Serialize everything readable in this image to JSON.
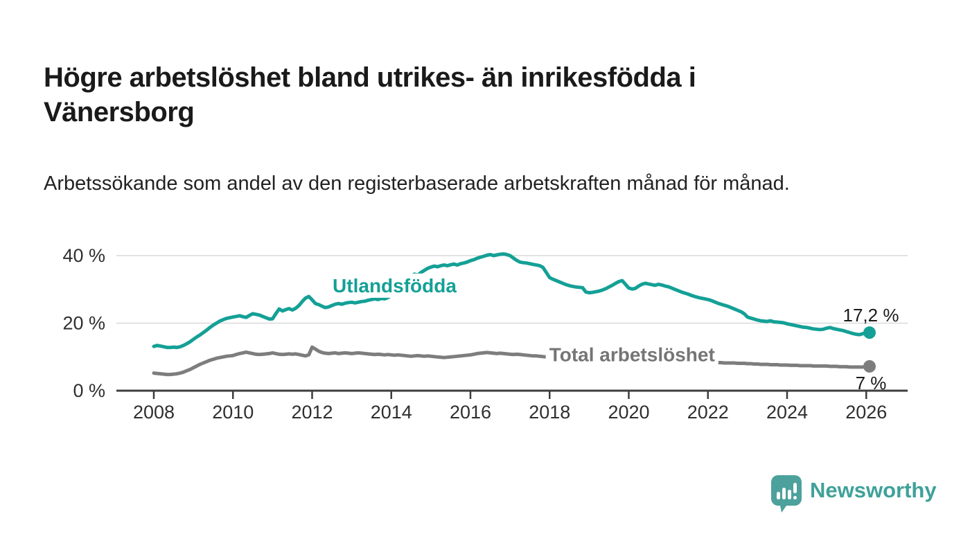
{
  "header": {
    "title": "Högre arbetslöshet bland utrikes- än inrikesfödda i Vänersborg",
    "subtitle": "Arbetssökande som andel av den registerbaserade arbetskraften månad för månad."
  },
  "footer": {
    "brand": "Newsworthy",
    "brand_color": "#3fa19a",
    "logo_icon": "speech-bubble-bar-chart"
  },
  "chart_data": {
    "type": "line",
    "title": "",
    "xlabel": "",
    "ylabel": "",
    "unit": "%",
    "x_axis": {
      "start": "2008-01",
      "end": "2026-02",
      "interval": "monthly",
      "tick_labels": [
        "2008",
        "2010",
        "2012",
        "2014",
        "2016",
        "2018",
        "2020",
        "2022",
        "2024",
        "2026"
      ]
    },
    "y_axis": {
      "ylim": [
        0,
        46
      ],
      "ticks": [
        {
          "value": 0,
          "label": "0 %"
        },
        {
          "value": 20,
          "label": "20 %"
        },
        {
          "value": 40,
          "label": "40 %"
        }
      ],
      "grid": true,
      "grid_color": "#d9d9d9",
      "axis_color": "#3d3d3d",
      "tick_label_color": "#2f2f2f"
    },
    "legend_position": "inline-labels",
    "series": [
      {
        "name": "Utlandsfödda",
        "color": "#14a096",
        "end_label": "17,2 %",
        "end_value": 17.2,
        "label": {
          "text": "Utlandsfödda",
          "month_index": 73,
          "value": 31
        },
        "values": [
          13.1,
          13.4,
          13.2,
          13.0,
          12.8,
          12.8,
          12.9,
          12.8,
          13.0,
          13.4,
          13.9,
          14.5,
          15.2,
          15.9,
          16.5,
          17.2,
          17.9,
          18.7,
          19.4,
          20.0,
          20.6,
          21.0,
          21.4,
          21.6,
          21.8,
          22.0,
          22.2,
          21.9,
          21.7,
          22.3,
          22.8,
          22.6,
          22.4,
          22.0,
          21.6,
          21.2,
          21.3,
          22.8,
          24.2,
          23.6,
          24.0,
          24.3,
          23.9,
          24.4,
          25.2,
          26.4,
          27.4,
          27.9,
          26.9,
          25.8,
          25.5,
          25.0,
          24.6,
          24.8,
          25.2,
          25.6,
          25.8,
          25.6,
          25.9,
          26.1,
          26.2,
          26.0,
          26.2,
          26.4,
          26.5,
          26.8,
          27.0,
          27.2,
          27.0,
          27.3,
          27.2,
          27.6,
          28.2,
          29.0,
          30.0,
          31.0,
          32.0,
          33.0,
          33.8,
          34.5,
          34.2,
          35.0,
          35.6,
          36.2,
          36.6,
          36.9,
          36.7,
          37.0,
          37.2,
          37.0,
          37.3,
          37.5,
          37.2,
          37.6,
          37.8,
          38.1,
          38.5,
          38.8,
          39.2,
          39.5,
          39.8,
          40.1,
          40.3,
          40.0,
          40.2,
          40.4,
          40.5,
          40.3,
          40.0,
          39.3,
          38.6,
          38.1,
          37.9,
          37.8,
          37.6,
          37.4,
          37.2,
          37.0,
          36.5,
          35.0,
          33.5,
          33.0,
          32.6,
          32.2,
          31.8,
          31.4,
          31.1,
          30.9,
          30.7,
          30.6,
          30.5,
          29.2,
          29.0,
          29.1,
          29.3,
          29.5,
          29.8,
          30.2,
          30.7,
          31.2,
          31.8,
          32.3,
          32.6,
          31.5,
          30.4,
          30.1,
          30.3,
          31.0,
          31.5,
          31.8,
          31.6,
          31.4,
          31.2,
          31.5,
          31.3,
          31.0,
          30.8,
          30.4,
          30.0,
          29.6,
          29.2,
          28.9,
          28.6,
          28.2,
          27.9,
          27.6,
          27.4,
          27.2,
          27.0,
          26.7,
          26.3,
          25.9,
          25.6,
          25.3,
          25.0,
          24.6,
          24.2,
          23.8,
          23.4,
          22.8,
          21.8,
          21.5,
          21.2,
          20.9,
          20.7,
          20.6,
          20.5,
          20.7,
          20.4,
          20.3,
          20.2,
          20.1,
          19.8,
          19.6,
          19.4,
          19.2,
          19.0,
          18.8,
          18.7,
          18.5,
          18.3,
          18.2,
          18.1,
          18.2,
          18.5,
          18.7,
          18.4,
          18.2,
          18.0,
          17.8,
          17.5,
          17.2,
          16.9,
          16.7,
          16.6,
          16.9,
          17.0,
          17.2
        ]
      },
      {
        "name": "Total arbetslöshet",
        "color": "#7d7d7d",
        "end_label": "7 %",
        "end_value": 7.2,
        "label": {
          "text": "Total arbetslöshet",
          "month_index": 145,
          "value": 10.6
        },
        "values": [
          5.2,
          5.1,
          5.0,
          4.9,
          4.8,
          4.8,
          4.9,
          5.0,
          5.2,
          5.5,
          5.9,
          6.3,
          6.8,
          7.3,
          7.8,
          8.2,
          8.6,
          9.0,
          9.3,
          9.6,
          9.8,
          10.0,
          10.2,
          10.3,
          10.4,
          10.7,
          11.0,
          11.2,
          11.4,
          11.2,
          11.0,
          10.8,
          10.7,
          10.8,
          10.9,
          11.0,
          11.2,
          11.0,
          10.8,
          10.7,
          10.8,
          10.9,
          10.8,
          10.9,
          10.7,
          10.5,
          10.3,
          10.6,
          12.9,
          12.3,
          11.7,
          11.3,
          11.1,
          11.0,
          11.1,
          11.2,
          11.0,
          11.1,
          11.2,
          11.1,
          11.0,
          11.1,
          11.2,
          11.1,
          11.0,
          10.9,
          10.8,
          10.7,
          10.8,
          10.7,
          10.6,
          10.7,
          10.6,
          10.5,
          10.6,
          10.5,
          10.4,
          10.3,
          10.2,
          10.3,
          10.4,
          10.3,
          10.2,
          10.3,
          10.2,
          10.1,
          10.0,
          9.9,
          9.8,
          9.9,
          10.0,
          10.1,
          10.2,
          10.3,
          10.4,
          10.5,
          10.6,
          10.8,
          11.0,
          11.1,
          11.2,
          11.3,
          11.2,
          11.1,
          11.0,
          11.1,
          11.0,
          10.9,
          10.8,
          10.7,
          10.8,
          10.7,
          10.6,
          10.5,
          10.4,
          10.3,
          10.3,
          10.2,
          10.1,
          10.0,
          9.9,
          9.8,
          9.7,
          9.6,
          9.5,
          9.4,
          9.3,
          9.2,
          9.2,
          9.1,
          9.0,
          9.0,
          9.0,
          9.0,
          9.1,
          9.1,
          9.2,
          9.2,
          9.3,
          9.3,
          9.4,
          9.4,
          9.5,
          9.5,
          9.6,
          9.7,
          9.9,
          10.2,
          10.4,
          10.5,
          10.5,
          10.4,
          10.3,
          10.2,
          10.1,
          10.0,
          9.9,
          9.8,
          9.7,
          9.5,
          9.4,
          9.2,
          9.1,
          9.0,
          8.9,
          8.8,
          8.7,
          8.6,
          8.5,
          8.4,
          8.4,
          8.3,
          8.3,
          8.2,
          8.2,
          8.2,
          8.2,
          8.1,
          8.1,
          8.1,
          8.0,
          8.0,
          7.9,
          7.9,
          7.8,
          7.8,
          7.8,
          7.7,
          7.7,
          7.7,
          7.6,
          7.6,
          7.6,
          7.5,
          7.5,
          7.5,
          7.4,
          7.4,
          7.4,
          7.4,
          7.3,
          7.3,
          7.3,
          7.3,
          7.3,
          7.2,
          7.2,
          7.2,
          7.1,
          7.1,
          7.1,
          7.0,
          7.0,
          7.0,
          7.0,
          7.0,
          7.2,
          7.2
        ]
      }
    ]
  }
}
